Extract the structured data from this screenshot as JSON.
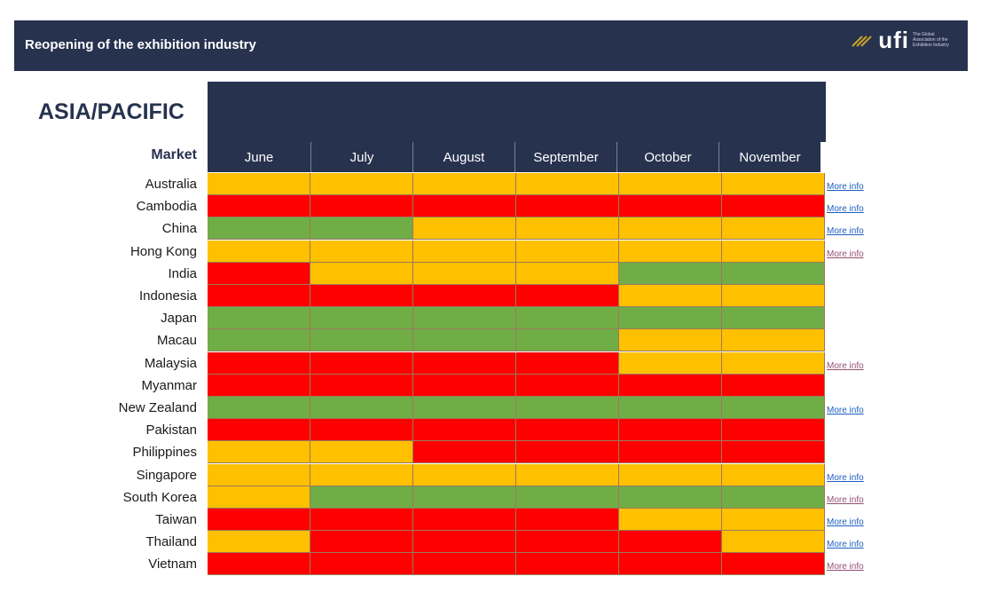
{
  "banner": {
    "title": "Reopening of the exhibition industry"
  },
  "logo": {
    "word": "ufi",
    "tagline": [
      "The Global",
      "Association of the",
      "Exhibition Industry"
    ]
  },
  "chart_data": {
    "type": "heatmap",
    "title": "ASIA/PACIFIC",
    "row_header": "Market",
    "months": [
      "June",
      "July",
      "August",
      "September",
      "October",
      "November"
    ],
    "status_colors": {
      "green": "#70ad47",
      "amber": "#ffc000",
      "red": "#ff0000"
    },
    "rows": [
      {
        "country": "Australia",
        "statuses": [
          "amber",
          "amber",
          "amber",
          "amber",
          "amber",
          "amber"
        ],
        "link": "More info",
        "link_state": "blue"
      },
      {
        "country": "Cambodia",
        "statuses": [
          "red",
          "red",
          "red",
          "red",
          "red",
          "red"
        ],
        "link": "More info",
        "link_state": "blue"
      },
      {
        "country": "China",
        "statuses": [
          "green",
          "green",
          "amber",
          "amber",
          "amber",
          "amber"
        ],
        "link": "More info",
        "link_state": "blue"
      },
      {
        "country": "Hong Kong",
        "statuses": [
          "amber",
          "amber",
          "amber",
          "amber",
          "amber",
          "amber"
        ],
        "link": "More info",
        "link_state": "visited"
      },
      {
        "country": "India",
        "statuses": [
          "red",
          "amber",
          "amber",
          "amber",
          "green",
          "green"
        ],
        "link": "",
        "link_state": ""
      },
      {
        "country": "Indonesia",
        "statuses": [
          "red",
          "red",
          "red",
          "red",
          "amber",
          "amber"
        ],
        "link": "",
        "link_state": ""
      },
      {
        "country": "Japan",
        "statuses": [
          "green",
          "green",
          "green",
          "green",
          "green",
          "green"
        ],
        "link": "",
        "link_state": ""
      },
      {
        "country": "Macau",
        "statuses": [
          "green",
          "green",
          "green",
          "green",
          "amber",
          "amber"
        ],
        "link": "",
        "link_state": ""
      },
      {
        "country": "Malaysia",
        "statuses": [
          "red",
          "red",
          "red",
          "red",
          "amber",
          "amber"
        ],
        "link": "More info",
        "link_state": "visited"
      },
      {
        "country": "Myanmar",
        "statuses": [
          "red",
          "red",
          "red",
          "red",
          "red",
          "red"
        ],
        "link": "",
        "link_state": ""
      },
      {
        "country": "New Zealand",
        "statuses": [
          "green",
          "green",
          "green",
          "green",
          "green",
          "green"
        ],
        "link": "More info",
        "link_state": "blue"
      },
      {
        "country": "Pakistan",
        "statuses": [
          "red",
          "red",
          "red",
          "red",
          "red",
          "red"
        ],
        "link": "",
        "link_state": ""
      },
      {
        "country": "Philippines",
        "statuses": [
          "amber",
          "amber",
          "red",
          "red",
          "red",
          "red"
        ],
        "link": "",
        "link_state": ""
      },
      {
        "country": "Singapore",
        "statuses": [
          "amber",
          "amber",
          "amber",
          "amber",
          "amber",
          "amber"
        ],
        "link": "More info",
        "link_state": "blue"
      },
      {
        "country": "South Korea",
        "statuses": [
          "amber",
          "green",
          "green",
          "green",
          "green",
          "green"
        ],
        "link": "More info",
        "link_state": "visited"
      },
      {
        "country": "Taiwan",
        "statuses": [
          "red",
          "red",
          "red",
          "red",
          "amber",
          "amber"
        ],
        "link": "More info",
        "link_state": "blue"
      },
      {
        "country": "Thailand",
        "statuses": [
          "amber",
          "red",
          "red",
          "red",
          "red",
          "amber"
        ],
        "link": "More info",
        "link_state": "blue"
      },
      {
        "country": "Vietnam",
        "statuses": [
          "red",
          "red",
          "red",
          "red",
          "red",
          "red"
        ],
        "link": "More info",
        "link_state": "visited"
      }
    ]
  }
}
